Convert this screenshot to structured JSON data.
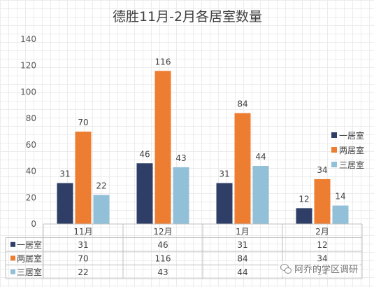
{
  "chart_data": {
    "type": "bar",
    "title": "德胜11月-2月各居室数量",
    "categories": [
      "11月",
      "12月",
      "1月",
      "2月"
    ],
    "series": [
      {
        "name": "一居室",
        "color": "#2e3e66",
        "values": [
          31,
          46,
          31,
          12
        ]
      },
      {
        "name": "两居室",
        "color": "#ed7d31",
        "values": [
          70,
          116,
          84,
          34
        ]
      },
      {
        "name": "三居室",
        "color": "#92c0d8",
        "values": [
          22,
          43,
          44,
          14
        ]
      }
    ],
    "ylim": [
      0,
      140
    ],
    "yticks": [
      0,
      20,
      40,
      60,
      80,
      100,
      120,
      140
    ],
    "grid": true,
    "legend_position": "right",
    "data_table": true
  },
  "watermark": {
    "text": "阿乔的学区调研",
    "icon": "wechat-icon"
  }
}
